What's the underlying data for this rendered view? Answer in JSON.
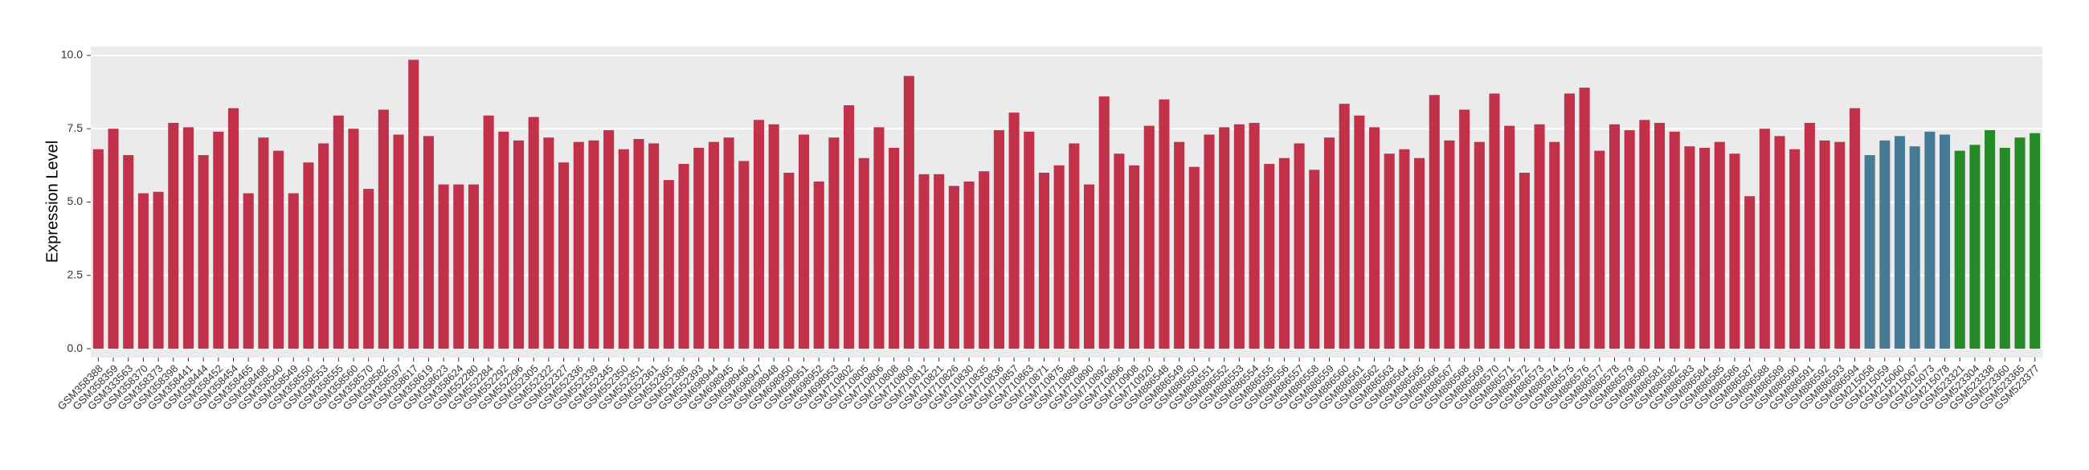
{
  "chart_data": {
    "type": "bar",
    "y_label": "Expression Level",
    "categories": [
      "GSM358388",
      "GSM358359",
      "GSM333563",
      "GSM358370",
      "GSM358373",
      "GSM358398",
      "GSM358441",
      "GSM358444",
      "GSM358452",
      "GSM358454",
      "GSM358465",
      "GSM358468",
      "GSM358540",
      "GSM358549",
      "GSM358550",
      "GSM358553",
      "GSM358555",
      "GSM358560",
      "GSM358570",
      "GSM358582",
      "GSM358597",
      "GSM358617",
      "GSM358619",
      "GSM358623",
      "GSM358624",
      "GSM552280",
      "GSM552284",
      "GSM552292",
      "GSM552296",
      "GSM552305",
      "GSM552322",
      "GSM552327",
      "GSM552336",
      "GSM552339",
      "GSM552345",
      "GSM552350",
      "GSM552351",
      "GSM552361",
      "GSM552365",
      "GSM552386",
      "GSM552393",
      "GSM698944",
      "GSM698945",
      "GSM698946",
      "GSM698947",
      "GSM698948",
      "GSM698950",
      "GSM698951",
      "GSM698952",
      "GSM698953",
      "GSM710802",
      "GSM710805",
      "GSM710806",
      "GSM710808",
      "GSM710809",
      "GSM710812",
      "GSM710821",
      "GSM710826",
      "GSM710830",
      "GSM710835",
      "GSM710836",
      "GSM710857",
      "GSM710863",
      "GSM710871",
      "GSM710875",
      "GSM710888",
      "GSM710890",
      "GSM710892",
      "GSM710896",
      "GSM710908",
      "GSM710920",
      "GSM886548",
      "GSM886549",
      "GSM886550",
      "GSM886551",
      "GSM886552",
      "GSM886553",
      "GSM886554",
      "GSM886555",
      "GSM886556",
      "GSM886557",
      "GSM886558",
      "GSM886559",
      "GSM886560",
      "GSM886561",
      "GSM886562",
      "GSM886563",
      "GSM886564",
      "GSM886565",
      "GSM886566",
      "GSM886567",
      "GSM886568",
      "GSM886569",
      "GSM886570",
      "GSM886571",
      "GSM886572",
      "GSM886573",
      "GSM886574",
      "GSM886575",
      "GSM886576",
      "GSM886577",
      "GSM886578",
      "GSM886579",
      "GSM886580",
      "GSM886581",
      "GSM886582",
      "GSM886583",
      "GSM886584",
      "GSM886585",
      "GSM886586",
      "GSM886587",
      "GSM886588",
      "GSM886589",
      "GSM886590",
      "GSM886591",
      "GSM886592",
      "GSM886593",
      "GSM886594",
      "GSM215058",
      "GSM215059",
      "GSM215060",
      "GSM215067",
      "GSM215073",
      "GSM215078",
      "GSM523321",
      "GSM523304",
      "GSM523338",
      "GSM523360",
      "GSM523365",
      "GSM523377"
    ],
    "values": [
      6.8,
      7.5,
      6.6,
      5.3,
      5.35,
      7.7,
      7.55,
      6.6,
      7.4,
      8.2,
      5.3,
      7.2,
      6.75,
      5.3,
      6.35,
      7.0,
      7.95,
      7.5,
      5.45,
      8.15,
      7.3,
      9.85,
      7.25,
      5.6,
      5.6,
      5.6,
      7.95,
      7.4,
      7.1,
      7.9,
      7.2,
      6.35,
      7.05,
      7.1,
      7.45,
      6.8,
      7.15,
      7.0,
      5.75,
      6.3,
      6.85,
      7.05,
      7.2,
      6.4,
      7.8,
      7.65,
      6.0,
      7.3,
      5.7,
      7.2,
      8.3,
      6.5,
      7.55,
      6.85,
      9.3,
      5.95,
      5.95,
      5.55,
      5.7,
      6.05,
      7.45,
      8.05,
      7.4,
      6.0,
      6.25,
      7.0,
      5.6,
      8.6,
      6.65,
      6.25,
      7.6,
      8.5,
      7.05,
      6.2,
      7.3,
      7.55,
      7.65,
      7.7,
      6.3,
      6.5,
      7.0,
      6.1,
      7.2,
      8.35,
      7.95,
      7.55,
      6.65,
      6.8,
      6.5,
      8.65,
      7.1,
      8.15,
      7.05,
      8.7,
      7.6,
      6.0,
      7.65,
      7.05,
      8.7,
      8.9,
      6.75,
      7.65,
      7.45,
      7.8,
      7.7,
      7.4,
      6.9,
      6.85,
      7.05,
      6.65,
      5.2,
      7.5,
      7.25,
      6.8,
      7.7,
      7.1,
      7.05,
      8.2,
      6.6,
      7.1,
      7.25,
      6.9,
      7.4,
      7.3,
      6.75,
      6.95,
      7.45,
      6.85,
      7.2,
      7.35
    ],
    "colors": [
      "#c13149",
      "#c13149",
      "#c13149",
      "#c13149",
      "#c13149",
      "#c13149",
      "#c13149",
      "#c13149",
      "#c13149",
      "#c13149",
      "#c13149",
      "#c13149",
      "#c13149",
      "#c13149",
      "#c13149",
      "#c13149",
      "#c13149",
      "#c13149",
      "#c13149",
      "#c13149",
      "#c13149",
      "#c13149",
      "#c13149",
      "#c13149",
      "#c13149",
      "#c13149",
      "#c13149",
      "#c13149",
      "#c13149",
      "#c13149",
      "#c13149",
      "#c13149",
      "#c13149",
      "#c13149",
      "#c13149",
      "#c13149",
      "#c13149",
      "#c13149",
      "#c13149",
      "#c13149",
      "#c13149",
      "#c13149",
      "#c13149",
      "#c13149",
      "#c13149",
      "#c13149",
      "#c13149",
      "#c13149",
      "#c13149",
      "#c13149",
      "#c13149",
      "#c13149",
      "#c13149",
      "#c13149",
      "#c13149",
      "#c13149",
      "#c13149",
      "#c13149",
      "#c13149",
      "#c13149",
      "#c13149",
      "#c13149",
      "#c13149",
      "#c13149",
      "#c13149",
      "#c13149",
      "#c13149",
      "#c13149",
      "#c13149",
      "#c13149",
      "#c13149",
      "#c13149",
      "#c13149",
      "#c13149",
      "#c13149",
      "#c13149",
      "#c13149",
      "#c13149",
      "#c13149",
      "#c13149",
      "#c13149",
      "#c13149",
      "#c13149",
      "#c13149",
      "#c13149",
      "#c13149",
      "#c13149",
      "#c13149",
      "#c13149",
      "#c13149",
      "#c13149",
      "#c13149",
      "#c13149",
      "#c13149",
      "#c13149",
      "#c13149",
      "#c13149",
      "#c13149",
      "#c13149",
      "#c13149",
      "#c13149",
      "#c13149",
      "#c13149",
      "#c13149",
      "#c13149",
      "#c13149",
      "#c13149",
      "#c13149",
      "#c13149",
      "#c13149",
      "#c13149",
      "#c13149",
      "#c13149",
      "#c13149",
      "#c13149",
      "#c13149",
      "#c13149",
      "#c13149",
      "#457b95",
      "#457b95",
      "#457b95",
      "#457b95",
      "#457b95",
      "#457b95",
      "#268a26",
      "#268a26",
      "#268a26",
      "#268a26",
      "#268a26",
      "#268a26"
    ],
    "ylim": [
      -0.3,
      10.3
    ],
    "yticks": [
      {
        "value": 0,
        "label": "0.0"
      },
      {
        "value": 2.5,
        "label": "2.5"
      },
      {
        "value": 5,
        "label": "5.0"
      },
      {
        "value": 7.5,
        "label": "7.5"
      },
      {
        "value": 10,
        "label": "10.0"
      }
    ],
    "grid": true
  }
}
